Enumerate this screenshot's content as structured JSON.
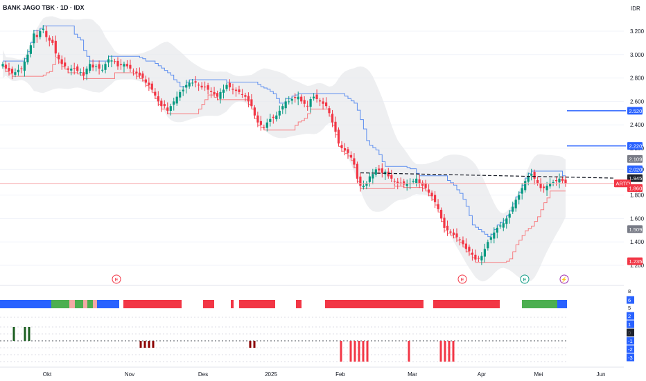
{
  "header": {
    "title": "BANK JAGO TBK · 1D · IDX",
    "currency": "IDR"
  },
  "chart_data": {
    "type": "candlestick",
    "title": "BANK JAGO TBK · 1D · IDX",
    "ylim": [
      1160,
      3300
    ],
    "y_ticks": [
      "3.200",
      "3.000",
      "2.800",
      "2.600",
      "2.400",
      "2.200",
      "2.020",
      "1.800",
      "1.600",
      "1.400",
      "1.200"
    ],
    "x_ticks": [
      "Okt",
      "Nov",
      "Des",
      "2025",
      "Feb",
      "Mar",
      "Apr",
      "Mei",
      "Jun"
    ],
    "price_labels": [
      {
        "text": "2.520",
        "value": 2520,
        "color": "#2962ff"
      },
      {
        "text": "2.220",
        "value": 2220,
        "color": "#2962ff"
      },
      {
        "text": "2.109",
        "value": 2109,
        "color": "#787b86"
      },
      {
        "text": "2.020",
        "value": 2020,
        "color": "#2962ff"
      },
      {
        "text": "1.945",
        "value": 1945,
        "color": "#1e222d"
      },
      {
        "text": "ARTO",
        "value": 1900,
        "color": "#f23645"
      },
      {
        "text": "1.860",
        "value": 1860,
        "color": "#f23645"
      },
      {
        "text": "1.509",
        "value": 1509,
        "color": "#787b86"
      },
      {
        "text": "1.235",
        "value": 1235,
        "color": "#f23645"
      }
    ],
    "horizontal_levels": [
      2520,
      2220
    ],
    "trendline": {
      "from": 1990,
      "to": 1945
    },
    "closes": [
      2920,
      2880,
      2860,
      2840,
      2850,
      2870,
      2880,
      2940,
      3000,
      3080,
      3180,
      3150,
      3200,
      3220,
      3150,
      3120,
      3100,
      3010,
      2960,
      2920,
      2900,
      2870,
      2880,
      2880,
      2860,
      2850,
      2820,
      2880,
      2920,
      2890,
      2900,
      2880,
      2870,
      2920,
      2960,
      2950,
      2940,
      2900,
      2910,
      2920,
      2900,
      2880,
      2860,
      2840,
      2820,
      2800,
      2760,
      2740,
      2700,
      2650,
      2600,
      2560,
      2560,
      2520,
      2560,
      2600,
      2640,
      2680,
      2700,
      2740,
      2760,
      2760,
      2760,
      2740,
      2720,
      2720,
      2700,
      2680,
      2660,
      2640,
      2680,
      2700,
      2740,
      2720,
      2700,
      2690,
      2680,
      2660,
      2640,
      2600,
      2560,
      2480,
      2420,
      2400,
      2380,
      2420,
      2450,
      2460,
      2480,
      2520,
      2560,
      2600,
      2600,
      2620,
      2630,
      2640,
      2600,
      2580,
      2560,
      2620,
      2640,
      2620,
      2600,
      2580,
      2560,
      2500,
      2420,
      2340,
      2240,
      2200,
      2180,
      2160,
      2120,
      2060,
      1940,
      1880,
      1880,
      1900,
      1960,
      1980,
      2020,
      2010,
      1990,
      2000,
      1960,
      1940,
      1920,
      1900,
      1900,
      1890,
      1900,
      1900,
      1920,
      1940,
      1900,
      1880,
      1860,
      1820,
      1790,
      1740,
      1680,
      1600,
      1520,
      1500,
      1480,
      1460,
      1440,
      1420,
      1380,
      1340,
      1320,
      1290,
      1250,
      1260,
      1280,
      1340,
      1400,
      1440,
      1480,
      1520,
      1540,
      1560,
      1600,
      1640,
      1700,
      1760,
      1800,
      1860,
      1920,
      1960,
      1980,
      1940,
      1900,
      1860,
      1860,
      1880,
      1900,
      1910,
      1920,
      1940,
      1920,
      1900
    ]
  },
  "events": [
    {
      "label": "E",
      "color": "#f23645"
    },
    {
      "label": "E",
      "color": "#f23645"
    },
    {
      "label": "E",
      "color": "#089981"
    },
    {
      "label": "⚡",
      "color": "#9c27b0"
    }
  ],
  "indicator": {
    "scale": [
      "8",
      "6",
      "5",
      "2",
      "1",
      "0",
      "0",
      "-1",
      "-2",
      "-3"
    ],
    "scale_colors": [
      "#1e222d",
      "#2962ff",
      "#1e222d",
      "#2962ff",
      "#2962ff",
      "#1e222d",
      "#1e222d",
      "#2962ff",
      "#2962ff",
      "#2962ff"
    ]
  }
}
